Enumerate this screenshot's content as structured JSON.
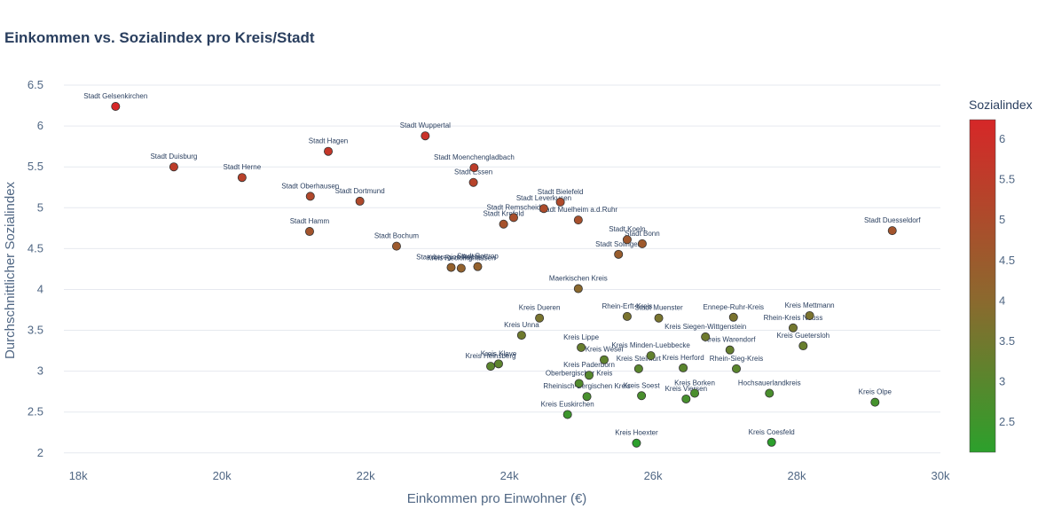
{
  "chart_data": {
    "type": "scatter",
    "title": "Einkommen vs. Sozialindex pro Kreis/Stadt",
    "xlabel": "Einkommen pro Einwohner (€)",
    "ylabel": "Durchschnittlicher Sozialindex",
    "xlim": [
      17800,
      30000
    ],
    "ylim": [
      1.9,
      6.62
    ],
    "xticks": [
      18000,
      20000,
      22000,
      24000,
      26000,
      28000,
      30000
    ],
    "xtick_labels": [
      "18k",
      "20k",
      "22k",
      "24k",
      "26k",
      "28k",
      "30k"
    ],
    "yticks": [
      2,
      2.5,
      3,
      3.5,
      4,
      4.5,
      5,
      5.5,
      6,
      6.5
    ],
    "ytick_labels": [
      "2",
      "2.5",
      "3",
      "3.5",
      "4",
      "4.5",
      "5",
      "5.5",
      "6",
      "6.5"
    ],
    "colorbar": {
      "title": "Sozialindex",
      "min": 2.13,
      "max": 6.24,
      "ticks": [
        2.5,
        3,
        3.5,
        4,
        4.5,
        5,
        5.5,
        6
      ],
      "tick_labels": [
        "2.5",
        "3",
        "3.5",
        "4",
        "4.5",
        "5",
        "5.5",
        "6"
      ],
      "color_low": "#2ca02c",
      "color_high": "#d62728"
    },
    "points": [
      {
        "label": "Stadt Gelsenkirchen",
        "x": 18520,
        "y": 6.24
      },
      {
        "label": "Stadt Duisburg",
        "x": 19330,
        "y": 5.5
      },
      {
        "label": "Stadt Herne",
        "x": 20280,
        "y": 5.37
      },
      {
        "label": "Stadt Hagen",
        "x": 21480,
        "y": 5.69
      },
      {
        "label": "Stadt Oberhausen",
        "x": 21230,
        "y": 5.14
      },
      {
        "label": "Stadt Dortmund",
        "x": 21920,
        "y": 5.08
      },
      {
        "label": "Stadt Hamm",
        "x": 21220,
        "y": 4.71
      },
      {
        "label": "Stadt Wuppertal",
        "x": 22830,
        "y": 5.88
      },
      {
        "label": "Stadt Bochum",
        "x": 22430,
        "y": 4.53
      },
      {
        "label": "Stadt Moenchengladbach",
        "x": 23510,
        "y": 5.49
      },
      {
        "label": "Stadt Essen",
        "x": 23500,
        "y": 5.31
      },
      {
        "label": "Stadt Bottrop",
        "x": 23560,
        "y": 4.28
      },
      {
        "label": "Staedteregion Aachen",
        "x": 23190,
        "y": 4.27
      },
      {
        "label": "Kreis Recklinghausen",
        "x": 23330,
        "y": 4.26
      },
      {
        "label": "Stadt Remscheid",
        "x": 24060,
        "y": 4.88
      },
      {
        "label": "Stadt Krefeld",
        "x": 23920,
        "y": 4.8
      },
      {
        "label": "Stadt Leverkusen",
        "x": 24480,
        "y": 4.99
      },
      {
        "label": "Stadt Bielefeld",
        "x": 24710,
        "y": 5.07
      },
      {
        "label": "Stadt Muelheim a.d.Ruhr",
        "x": 24960,
        "y": 4.85
      },
      {
        "label": "Stadt Koeln",
        "x": 25640,
        "y": 4.61
      },
      {
        "label": "Stadt Bonn",
        "x": 25850,
        "y": 4.56
      },
      {
        "label": "Stadt Solingen",
        "x": 25520,
        "y": 4.43
      },
      {
        "label": "Stadt Duesseldorf",
        "x": 29330,
        "y": 4.72
      },
      {
        "label": "Maerkischen Kreis",
        "x": 24960,
        "y": 4.01
      },
      {
        "label": "Kreis Dueren",
        "x": 24420,
        "y": 3.65
      },
      {
        "label": "Rhein-Erft-Kreis",
        "x": 25640,
        "y": 3.67
      },
      {
        "label": "Stadt Muenster",
        "x": 26080,
        "y": 3.65
      },
      {
        "label": "Ennepe-Ruhr-Kreis",
        "x": 27120,
        "y": 3.66
      },
      {
        "label": "Kreis Mettmann",
        "x": 28180,
        "y": 3.68
      },
      {
        "label": "Rhein-Kreis Neuss",
        "x": 27950,
        "y": 3.53
      },
      {
        "label": "Kreis Unna",
        "x": 24170,
        "y": 3.44
      },
      {
        "label": "Kreis Siegen-Wittgenstein",
        "x": 26730,
        "y": 3.42
      },
      {
        "label": "Kreis Guetersloh",
        "x": 28090,
        "y": 3.31
      },
      {
        "label": "Kreis Lippe",
        "x": 25000,
        "y": 3.29
      },
      {
        "label": "Kreis Warendorf",
        "x": 27070,
        "y": 3.26
      },
      {
        "label": "Kreis Wesel",
        "x": 25320,
        "y": 3.14
      },
      {
        "label": "Kreis Minden-Luebbecke",
        "x": 25970,
        "y": 3.19
      },
      {
        "label": "Kreis Kleve",
        "x": 23850,
        "y": 3.09
      },
      {
        "label": "Kreis Heinsberg",
        "x": 23740,
        "y": 3.06
      },
      {
        "label": "Kreis Paderborn",
        "x": 25110,
        "y": 2.95
      },
      {
        "label": "Kreis Steinfurt",
        "x": 25800,
        "y": 3.03
      },
      {
        "label": "Kreis Herford",
        "x": 26420,
        "y": 3.04
      },
      {
        "label": "Rhein-Sieg-Kreis",
        "x": 27160,
        "y": 3.03
      },
      {
        "label": "Oberbergischer Kreis",
        "x": 24970,
        "y": 2.85
      },
      {
        "label": "Rheinisch-Bergischen Kreis",
        "x": 25080,
        "y": 2.69
      },
      {
        "label": "Kreis Soest",
        "x": 25840,
        "y": 2.7
      },
      {
        "label": "Kreis Borken",
        "x": 26580,
        "y": 2.73
      },
      {
        "label": "Kreis Viersen",
        "x": 26460,
        "y": 2.66
      },
      {
        "label": "Hochsauerlandkreis",
        "x": 27620,
        "y": 2.73
      },
      {
        "label": "Kreis Euskirchen",
        "x": 24810,
        "y": 2.47
      },
      {
        "label": "Kreis Olpe",
        "x": 29090,
        "y": 2.62
      },
      {
        "label": "Kreis Hoexter",
        "x": 25770,
        "y": 2.12
      },
      {
        "label": "Kreis Coesfeld",
        "x": 27650,
        "y": 2.13
      }
    ]
  }
}
